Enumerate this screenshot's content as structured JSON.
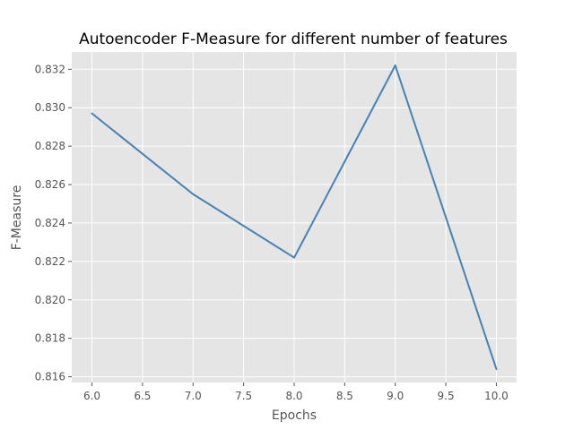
{
  "chart_data": {
    "type": "line",
    "title": "Autoencoder F-Measure for different number of features",
    "xlabel": "Epochs",
    "ylabel": "F-Measure",
    "x": [
      6,
      7,
      8,
      9,
      10
    ],
    "series": [
      {
        "values": [
          0.8297,
          0.8255,
          0.8222,
          0.8322,
          0.8164
        ]
      }
    ],
    "xlim": [
      5.8,
      10.2
    ],
    "ylim": [
      0.8157,
      0.8329
    ],
    "x_ticks": [
      "6.0",
      "6.5",
      "7.0",
      "7.5",
      "8.0",
      "8.5",
      "9.0",
      "9.5",
      "10.0"
    ],
    "y_ticks": [
      "0.816",
      "0.818",
      "0.820",
      "0.822",
      "0.824",
      "0.826",
      "0.828",
      "0.830",
      "0.832"
    ],
    "grid": true,
    "legend": false,
    "colors": {
      "line": "#4682b4",
      "background": "#e5e5e5",
      "grid": "#ffffff"
    }
  }
}
